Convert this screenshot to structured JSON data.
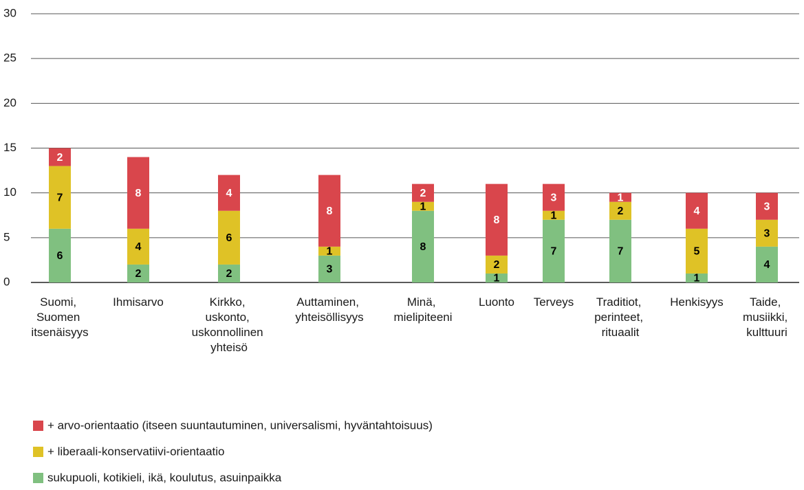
{
  "chart_data": {
    "type": "bar",
    "stacked": true,
    "categories": [
      "Suomi, Suomen itsenäisyys",
      "Ihmisarvo",
      "Kirkko, uskonto, uskonnollinen yhteisö",
      "Auttaminen, yhteisöllisyys",
      "Minä, mielipiteeni",
      "Luonto",
      "Terveys",
      "Traditiot, perinteet, rituaalit",
      "Henkisyys",
      "Taide, musiikki, kulttuuri"
    ],
    "series": [
      {
        "name": "sukupuoli, kotikieli, ikä, koulutus, asuinpaikka",
        "color": "#80c080",
        "label_color": "#000000",
        "values": [
          6,
          2,
          2,
          3,
          8,
          1,
          7,
          7,
          1,
          4
        ]
      },
      {
        "name": "+ liberaali-konservatiivi-orientaatio",
        "color": "#dfc226",
        "label_color": "#000000",
        "values": [
          7,
          4,
          6,
          1,
          1,
          2,
          1,
          2,
          5,
          3
        ]
      },
      {
        "name": "+ arvo-orientaatio (itseen suuntautuminen, universalismi, hyväntahtoisuus)",
        "color": "#d9464c",
        "label_color": "#ffffff",
        "values": [
          2,
          8,
          4,
          8,
          2,
          8,
          3,
          1,
          4,
          3
        ]
      }
    ],
    "ylim": [
      0,
      30
    ],
    "yticks": [
      0,
      5,
      10,
      15,
      20,
      25,
      30
    ],
    "grid": true,
    "legend": "bottom-left"
  }
}
